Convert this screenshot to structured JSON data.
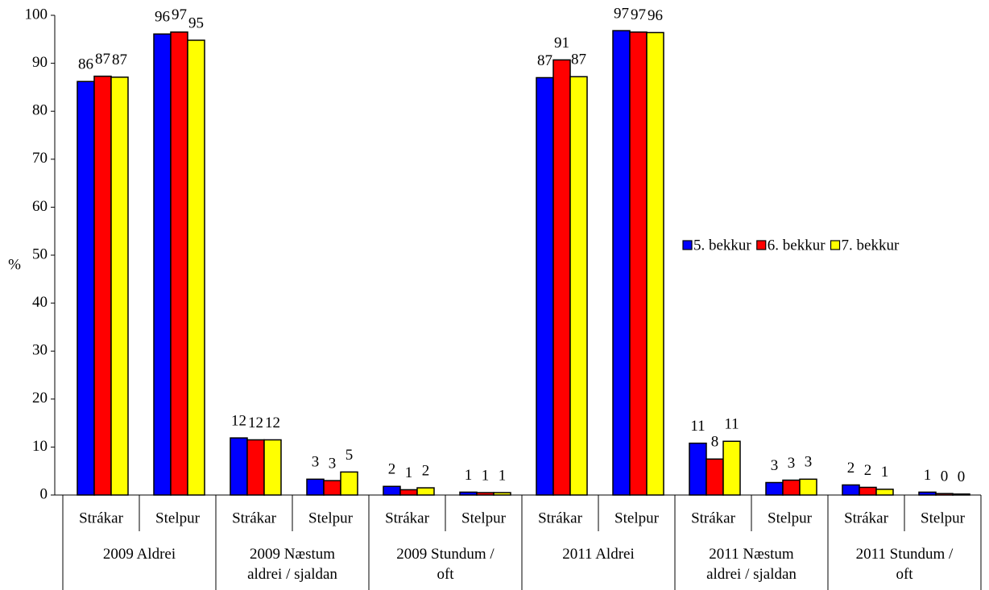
{
  "chart_data": {
    "type": "bar",
    "y_label": "%",
    "categories": [
      "Strákar",
      "Stelpur",
      "Strákar",
      "Stelpur",
      "Strákar",
      "Stelpur",
      "Strákar",
      "Stelpur",
      "Strákar",
      "Stelpur",
      "Strákar",
      "Stelpur"
    ],
    "groups": [
      "2009 Aldrei",
      "2009 Næstum\naldrei / sjaldan",
      "2009  Stundum /\noft",
      "2011 Aldrei",
      "2011 Næstum\naldrei / sjaldan",
      "2011 Stundum /\noft"
    ],
    "series": [
      {
        "name": "5. bekkur",
        "color": "#0000ff",
        "values": [
          86.2,
          96.1,
          11.9,
          3.3,
          1.8,
          0.6,
          87.0,
          96.8,
          10.8,
          2.6,
          2.1,
          0.6
        ],
        "value_labels": [
          "86",
          "96",
          "12",
          "3",
          "2",
          "1",
          "87",
          "97",
          "11",
          "3",
          "2",
          "1"
        ]
      },
      {
        "name": "6. bekkur",
        "color": "#ff0000",
        "values": [
          87.3,
          96.5,
          11.5,
          3.0,
          1.1,
          0.5,
          90.7,
          96.5,
          7.5,
          3.1,
          1.6,
          0.3
        ],
        "value_labels": [
          "87",
          "97",
          "12",
          "3",
          "1",
          "1",
          "91",
          "97",
          "8",
          "3",
          "2",
          "0"
        ]
      },
      {
        "name": "7. bekkur",
        "color": "#ffff00",
        "values": [
          87.1,
          94.8,
          11.5,
          4.8,
          1.5,
          0.5,
          87.2,
          96.4,
          11.2,
          3.3,
          1.2,
          0.2
        ],
        "value_labels": [
          "87",
          "95",
          "12",
          "5",
          "2",
          "1",
          "87",
          "96",
          "11",
          "3",
          "1",
          "0"
        ]
      }
    ],
    "ylim": [
      0,
      100
    ],
    "yticks": [
      0,
      10,
      20,
      30,
      40,
      50,
      60,
      70,
      80,
      90,
      100
    ],
    "legend": "right"
  }
}
